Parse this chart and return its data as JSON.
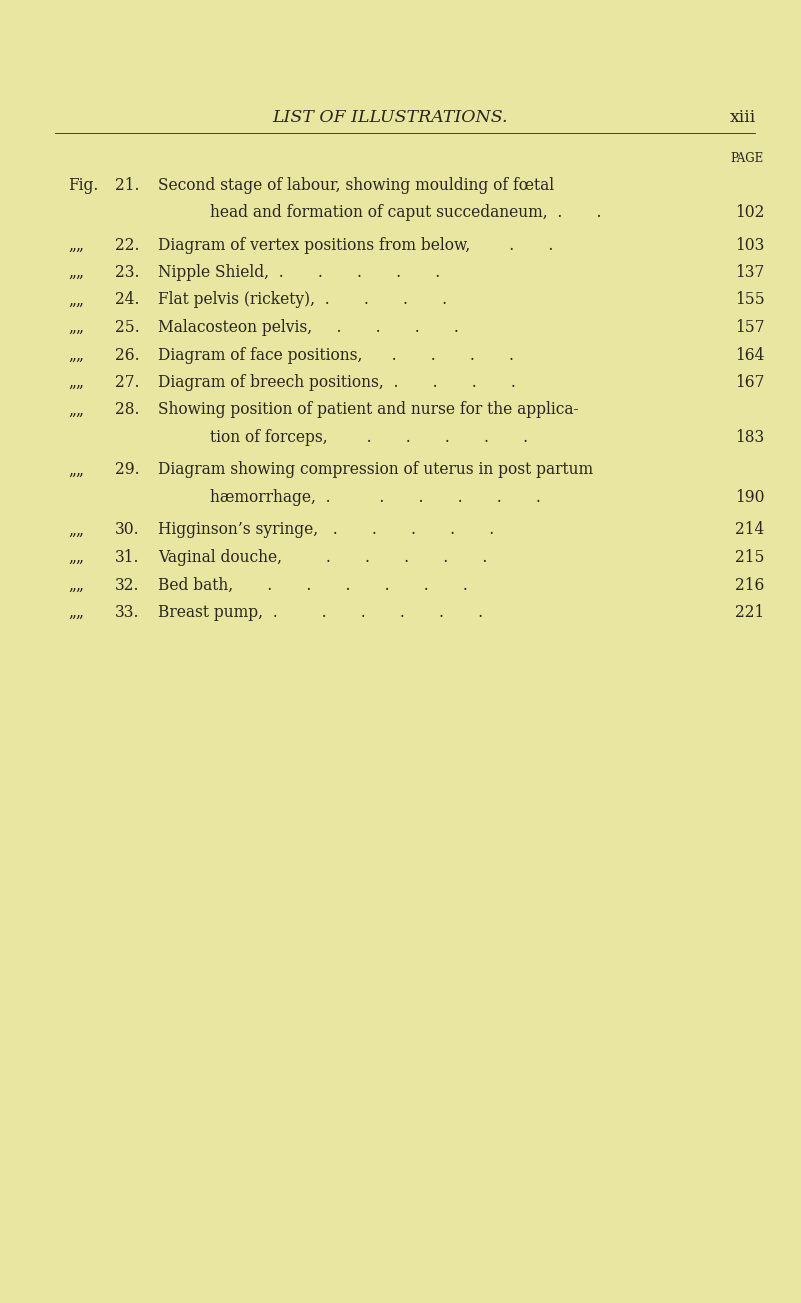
{
  "bg_color": "#e8e6a0",
  "title": "LIST OF ILLUSTRATIONS.",
  "page_label": "xiii",
  "page_header": "PAGE",
  "text_color": "#2a2520",
  "title_fontsize": 12.5,
  "body_fontsize": 11.2,
  "small_fontsize": 8.5,
  "fig_width": 8.01,
  "fig_height": 13.03,
  "dpi": 100,
  "entries": [
    {
      "num": "21.",
      "fig_prefix": true,
      "line1": "Second stage of labour, showing moulding of fœtal",
      "line2": "head and formation of caput succedaneum,  .       .",
      "page": "102",
      "two_line": true
    },
    {
      "num": "22.",
      "fig_prefix": false,
      "line1": "Diagram of vertex positions from below,        .       .",
      "line2": "",
      "page": "103",
      "two_line": false
    },
    {
      "num": "23.",
      "fig_prefix": false,
      "line1": "Nipple Shield,  .       .       .       .       .",
      "line2": "",
      "page": "137",
      "two_line": false
    },
    {
      "num": "24.",
      "fig_prefix": false,
      "line1": "Flat pelvis (rickety),  .       .       .       .",
      "line2": "",
      "page": "155",
      "two_line": false
    },
    {
      "num": "25.",
      "fig_prefix": false,
      "line1": "Malacosteon pelvis,     .       .       .       .",
      "line2": "",
      "page": "157",
      "two_line": false
    },
    {
      "num": "26.",
      "fig_prefix": false,
      "line1": "Diagram of face positions,      .       .       .       .",
      "line2": "",
      "page": "164",
      "two_line": false
    },
    {
      "num": "27.",
      "fig_prefix": false,
      "line1": "Diagram of breech positions,  .       .       .       .",
      "line2": "",
      "page": "167",
      "two_line": false
    },
    {
      "num": "28.",
      "fig_prefix": false,
      "line1": "Showing position of patient and nurse for the applica-",
      "line2": "tion of forceps,        .       .       .       .       .",
      "page": "183",
      "two_line": true
    },
    {
      "num": "29.",
      "fig_prefix": false,
      "line1": "Diagram showing compression of uterus in post partum",
      "line2": "hæmorrhage,  .          .       .       .       .       .",
      "page": "190",
      "two_line": true
    },
    {
      "num": "30.",
      "fig_prefix": false,
      "line1": "Higginson’s syringe,   .       .       .       .       .",
      "line2": "",
      "page": "214",
      "two_line": false
    },
    {
      "num": "31.",
      "fig_prefix": false,
      "line1": "Vaginal douche,         .       .       .       .       .",
      "line2": "",
      "page": "215",
      "two_line": false
    },
    {
      "num": "32.",
      "fig_prefix": false,
      "line1": "Bed bath,       .       .       .       .       .       .",
      "line2": "",
      "page": "216",
      "two_line": false
    },
    {
      "num": "33.",
      "fig_prefix": false,
      "line1": "Breast pump,  .         .       .       .       .       .",
      "line2": "",
      "page": "221",
      "two_line": false
    }
  ]
}
